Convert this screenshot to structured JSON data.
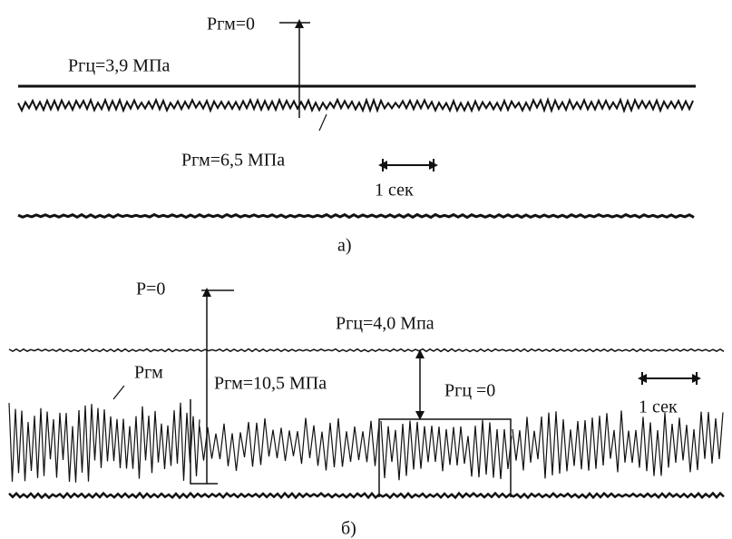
{
  "panel_a": {
    "label": "а)",
    "p_gm_zero": "Ргм=0",
    "p_gc": "Ргц=3,9 МПа",
    "p_gm": "Ргм=6,5 МПа",
    "time_scale": "1 сек"
  },
  "panel_b": {
    "label": "б)",
    "p_zero": "Р=0",
    "p_gc": "Ргц=4,0 Мпа",
    "p_gm_marker": "Ргм",
    "p_gm": "Ргм=10,5 МПа",
    "p_gc_zero": "Ргц =0",
    "time_scale": "1 сек"
  }
}
